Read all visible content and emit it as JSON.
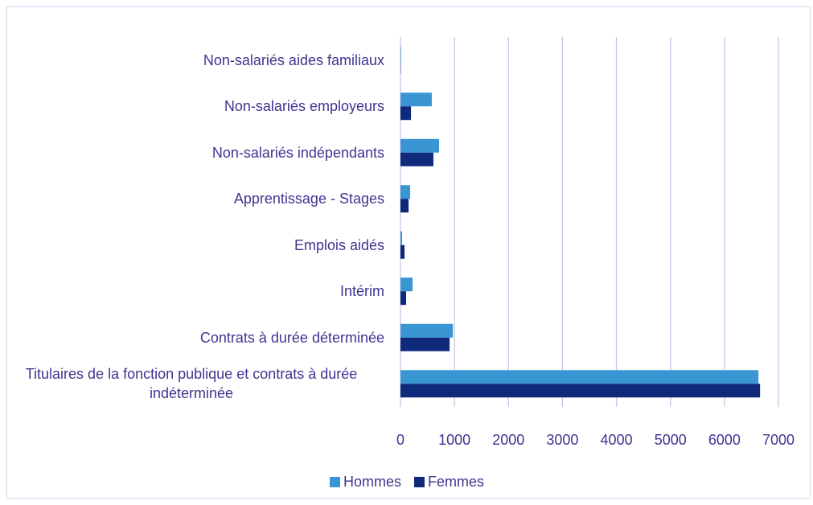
{
  "chart_data": {
    "type": "hbar",
    "categories": [
      "Non-salariés aides familiaux",
      "Non-salariés employeurs",
      "Non-salariés indépendants",
      "Apprentissage - Stages",
      "Emplois aidés",
      "Intérim",
      "Contrats à durée déterminée",
      "Titulaires de la fonction publique et contrats à durée indéterminée"
    ],
    "series": [
      {
        "name": "Hommes",
        "color": "#3a96d3",
        "values": [
          10,
          580,
          715,
          180,
          30,
          225,
          970,
          6630
        ]
      },
      {
        "name": "Femmes",
        "color": "#0f2a7a",
        "values": [
          5,
          195,
          610,
          150,
          75,
          105,
          910,
          6660
        ]
      }
    ],
    "xlim": [
      0,
      7000
    ],
    "xticks": [
      0,
      1000,
      2000,
      3000,
      4000,
      5000,
      6000,
      7000
    ],
    "grid": true,
    "legend": "bottom"
  }
}
